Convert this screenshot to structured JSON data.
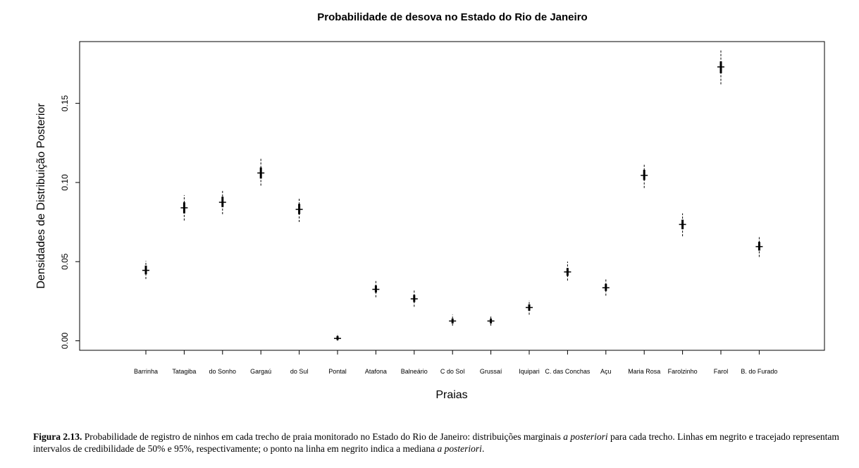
{
  "chart_data": {
    "type": "interval",
    "title": "Probabilidade de desova no Estado do Rio de Janeiro",
    "xlabel": "Praias",
    "ylabel": "Densidades de Distribuição Posterior",
    "ylim": [
      -0.006,
      0.189
    ],
    "yticks": [
      "0.00",
      "0.05",
      "0.10",
      "0.15"
    ],
    "grid": false,
    "legend": "none",
    "categories": [
      "Barrinha",
      "Tatagiba",
      "do Sonho",
      "Gargaú",
      "do Sul",
      "Pontal",
      "Atafona",
      "Balneário",
      "C do Sol",
      "Grussaí",
      "Iquipari",
      "C. das Conchas",
      "Açu",
      "Maria Rosa",
      "Farolzinho",
      "Farol",
      "B. do Furado"
    ],
    "series": [
      {
        "median": [
          0.0445,
          0.084,
          0.0875,
          0.106,
          0.083,
          0.0015,
          0.0325,
          0.0265,
          0.0125,
          0.0125,
          0.021,
          0.0435,
          0.0335,
          0.1045,
          0.0735,
          0.173,
          0.0595
        ],
        "ci50_low": [
          0.042,
          0.0805,
          0.0845,
          0.1025,
          0.08,
          0.0005,
          0.0305,
          0.0245,
          0.011,
          0.011,
          0.019,
          0.041,
          0.0315,
          0.1015,
          0.0705,
          0.169,
          0.057
        ],
        "ci50_high": [
          0.0475,
          0.0875,
          0.091,
          0.1095,
          0.0865,
          0.003,
          0.035,
          0.029,
          0.014,
          0.014,
          0.023,
          0.046,
          0.036,
          0.108,
          0.0765,
          0.1765,
          0.0625
        ],
        "ci95_low": [
          0.039,
          0.076,
          0.08,
          0.098,
          0.075,
          0.0,
          0.0275,
          0.0215,
          0.0095,
          0.0095,
          0.0165,
          0.038,
          0.0285,
          0.0965,
          0.066,
          0.162,
          0.053
        ],
        "ci95_high": [
          0.0505,
          0.092,
          0.0955,
          0.1155,
          0.0905,
          0.0045,
          0.038,
          0.032,
          0.0165,
          0.016,
          0.0255,
          0.05,
          0.0395,
          0.1115,
          0.0805,
          0.184,
          0.0655
        ]
      }
    ]
  },
  "caption": {
    "label": "Figura 2.13.",
    "part1": " Probabilidade de registro de ninhos em cada trecho de praia monitorado no Estado do Rio de Janeiro: distribuições marginais ",
    "italic1": "a posteriori",
    "part2": " para cada trecho. Linhas em negrito e tracejado representam intervalos de credibilidade de 50% e 95%, respectivamente; o ponto na linha em negrito indica a mediana ",
    "italic2": "a posteriori",
    "part3": "."
  }
}
